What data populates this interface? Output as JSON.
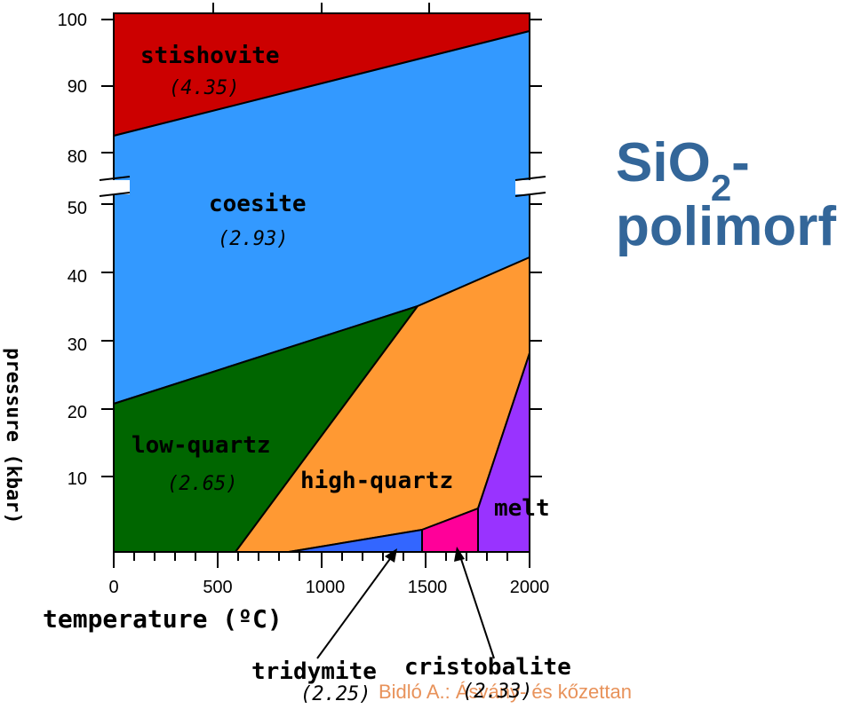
{
  "title": {
    "line1_main": "SiO",
    "line1_sub": "2",
    "line1_suffix": "-",
    "line2": "polimorf"
  },
  "x_axis": {
    "label": "temperature (ºC)",
    "ticks": [
      "0",
      "500",
      "1000",
      "1500",
      "2000"
    ]
  },
  "y_axis": {
    "label": "pressure (kbar)",
    "ticks": [
      "100",
      "90",
      "80",
      "50",
      "40",
      "30",
      "20",
      "10"
    ]
  },
  "phases": {
    "stishovite": {
      "name": "stishovite",
      "density": "(4.35)",
      "color": "#cc0000"
    },
    "coesite": {
      "name": "coesite",
      "density": "(2.93)",
      "color": "#3399ff"
    },
    "low_quartz": {
      "name": "low-quartz",
      "density": "(2.65)",
      "color": "#006600"
    },
    "high_quartz": {
      "name": "high-quartz",
      "color": "#ff9933"
    },
    "melt": {
      "name": "melt",
      "color": "#9933ff"
    },
    "tridymite": {
      "name": "tridymite",
      "density": "(2.25)",
      "color": "#3366ff"
    },
    "cristobalite": {
      "name": "cristobalite",
      "density": "(2.33)",
      "color": "#ff0099"
    }
  },
  "credit": "Bidló A.: Ásvány- és kőzettan"
}
